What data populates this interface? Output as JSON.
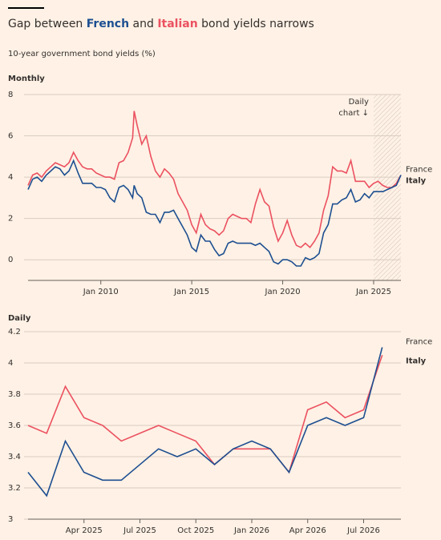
{
  "header": {
    "title": [
      "Gap between ",
      "French",
      " and ",
      "Italian",
      " bond yields narrows"
    ],
    "title_colors": [
      null,
      "#1d4f91",
      null,
      "#eb5160",
      null
    ],
    "subtitle": "10-year government bond yields (%)"
  },
  "chart_data": [
    {
      "type": "line",
      "panel_label": "Monthly",
      "x": [
        "2006-01",
        "2006-04",
        "2006-07",
        "2006-10",
        "2007-01",
        "2007-04",
        "2007-07",
        "2007-10",
        "2008-01",
        "2008-04",
        "2008-07",
        "2008-10",
        "2009-01",
        "2009-04",
        "2009-07",
        "2009-10",
        "2010-01",
        "2010-04",
        "2010-07",
        "2010-10",
        "2011-01",
        "2011-04",
        "2011-07",
        "2011-10",
        "2011-11",
        "2012-01",
        "2012-04",
        "2012-07",
        "2012-10",
        "2013-01",
        "2013-04",
        "2013-07",
        "2013-10",
        "2014-01",
        "2014-04",
        "2014-07",
        "2014-10",
        "2015-01",
        "2015-04",
        "2015-07",
        "2015-10",
        "2016-01",
        "2016-04",
        "2016-07",
        "2016-10",
        "2017-01",
        "2017-04",
        "2017-07",
        "2017-10",
        "2018-01",
        "2018-04",
        "2018-07",
        "2018-10",
        "2019-01",
        "2019-04",
        "2019-07",
        "2019-10",
        "2020-01",
        "2020-04",
        "2020-07",
        "2020-10",
        "2021-01",
        "2021-04",
        "2021-07",
        "2021-10",
        "2022-01",
        "2022-04",
        "2022-07",
        "2022-10",
        "2023-01",
        "2023-04",
        "2023-07",
        "2023-10",
        "2024-01",
        "2024-04",
        "2024-07",
        "2024-10",
        "2025-01",
        "2025-04",
        "2025-07",
        "2025-10",
        "2026-01",
        "2026-04",
        "2026-07"
      ],
      "series": [
        {
          "name": "France",
          "color": "#1d4f91",
          "values": [
            3.4,
            3.9,
            4.0,
            3.8,
            4.1,
            4.3,
            4.5,
            4.4,
            4.1,
            4.3,
            4.8,
            4.2,
            3.7,
            3.7,
            3.7,
            3.5,
            3.5,
            3.4,
            3.0,
            2.8,
            3.5,
            3.6,
            3.4,
            3.0,
            3.6,
            3.2,
            3.0,
            2.3,
            2.2,
            2.2,
            1.8,
            2.3,
            2.3,
            2.4,
            2.0,
            1.6,
            1.2,
            0.6,
            0.4,
            1.2,
            0.9,
            0.9,
            0.5,
            0.2,
            0.3,
            0.8,
            0.9,
            0.8,
            0.8,
            0.8,
            0.8,
            0.7,
            0.8,
            0.6,
            0.4,
            -0.1,
            -0.2,
            0.0,
            0.0,
            -0.1,
            -0.3,
            -0.3,
            0.1,
            0.0,
            0.1,
            0.3,
            1.3,
            1.7,
            2.7,
            2.7,
            2.9,
            3.0,
            3.4,
            2.8,
            2.9,
            3.2,
            3.0,
            3.3,
            3.3,
            3.3,
            3.4,
            3.5,
            3.6,
            4.1
          ]
        },
        {
          "name": "Italy",
          "color": "#eb5160",
          "values": [
            3.6,
            4.1,
            4.2,
            4.0,
            4.3,
            4.5,
            4.7,
            4.6,
            4.5,
            4.7,
            5.2,
            4.8,
            4.5,
            4.4,
            4.4,
            4.2,
            4.1,
            4.0,
            4.0,
            3.9,
            4.7,
            4.8,
            5.2,
            5.9,
            7.2,
            6.5,
            5.6,
            6.0,
            5.0,
            4.3,
            4.0,
            4.4,
            4.2,
            3.9,
            3.2,
            2.8,
            2.4,
            1.7,
            1.3,
            2.2,
            1.7,
            1.5,
            1.4,
            1.2,
            1.4,
            2.0,
            2.2,
            2.1,
            2.0,
            2.0,
            1.8,
            2.7,
            3.4,
            2.8,
            2.6,
            1.6,
            0.9,
            1.3,
            1.9,
            1.2,
            0.7,
            0.6,
            0.8,
            0.6,
            0.9,
            1.3,
            2.4,
            3.1,
            4.5,
            4.3,
            4.3,
            4.2,
            4.8,
            3.8,
            3.8,
            3.8,
            3.5,
            3.7,
            3.8,
            3.6,
            3.5,
            3.5,
            3.7,
            4.1
          ]
        }
      ],
      "xlim": [
        "2006-01",
        "2026-07"
      ],
      "xticks": [
        {
          "value": "2010-01",
          "label": "Jan 2010"
        },
        {
          "value": "2015-01",
          "label": "Jan 2015"
        },
        {
          "value": "2020-01",
          "label": "Jan 2020"
        },
        {
          "value": "2025-01",
          "label": "Jan 2025"
        }
      ],
      "ylim": [
        -1,
        8
      ],
      "yticks": [
        0,
        2,
        4,
        6,
        8
      ],
      "grid": true,
      "highlight_start": "2025-01",
      "annotation": [
        "Daily",
        "chart ↓"
      ]
    },
    {
      "type": "line",
      "panel_label": "Daily",
      "x": [
        "2025-01",
        "2025-02",
        "2025-03",
        "2025-04",
        "2025-05",
        "2025-06",
        "2025-07",
        "2025-08",
        "2025-09",
        "2025-10",
        "2025-11",
        "2025-12",
        "2026-01",
        "2026-02",
        "2026-03",
        "2026-04",
        "2026-05",
        "2026-06",
        "2026-07",
        "2026-08"
      ],
      "series": [
        {
          "name": "France",
          "color": "#1d4f91",
          "values": [
            3.3,
            3.15,
            3.5,
            3.3,
            3.25,
            3.25,
            3.35,
            3.45,
            3.4,
            3.45,
            3.35,
            3.45,
            3.5,
            3.45,
            3.3,
            3.6,
            3.65,
            3.6,
            3.65,
            4.1
          ]
        },
        {
          "name": "Italy",
          "color": "#eb5160",
          "values": [
            3.6,
            3.55,
            3.85,
            3.65,
            3.6,
            3.5,
            3.55,
            3.6,
            3.55,
            3.5,
            3.35,
            3.45,
            3.45,
            3.45,
            3.3,
            3.7,
            3.75,
            3.65,
            3.7,
            4.05
          ]
        }
      ],
      "xlim": [
        "2025-01",
        "2026-09"
      ],
      "xticks": [
        {
          "value": "2025-04",
          "label": "Apr 2025"
        },
        {
          "value": "2025-07",
          "label": "Jul 2025"
        },
        {
          "value": "2025-10",
          "label": "Oct 2025"
        },
        {
          "value": "2026-01",
          "label": "Jan 2026"
        },
        {
          "value": "2026-04",
          "label": "Apr 2026"
        },
        {
          "value": "2026-07",
          "label": "Jul 2026"
        }
      ],
      "ylim": [
        3,
        4.2
      ],
      "yticks": [
        3,
        3.2,
        3.4,
        3.6,
        3.8,
        4,
        4.2
      ],
      "grid": true
    }
  ]
}
